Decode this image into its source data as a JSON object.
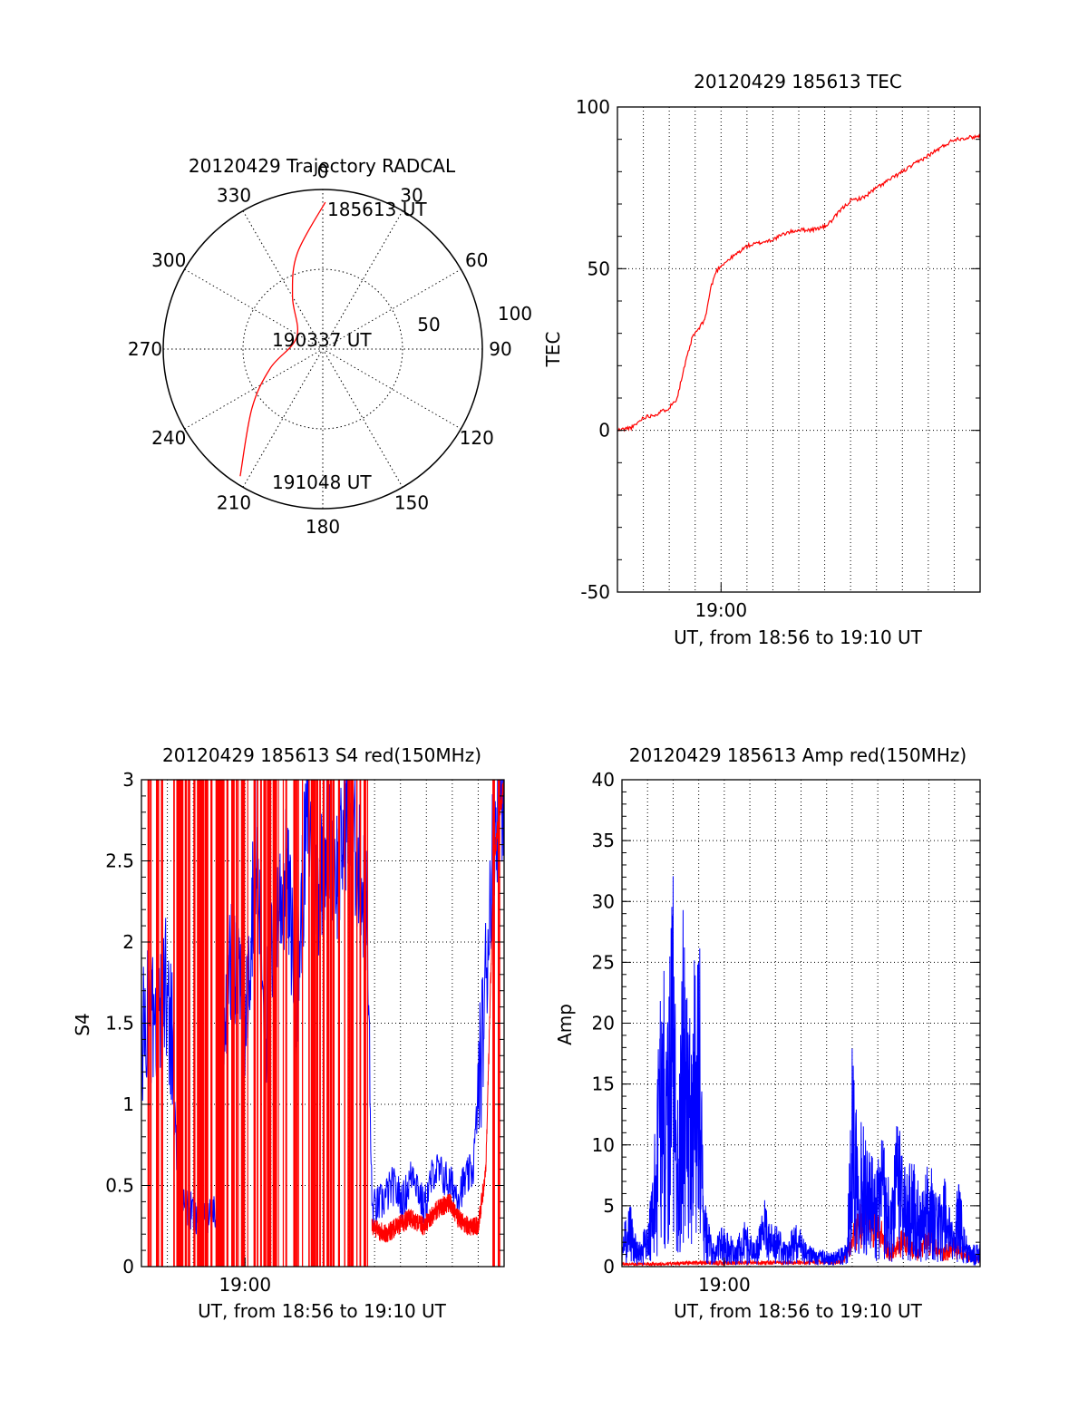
{
  "chart_data": [
    {
      "id": "polar",
      "type": "polar-trajectory",
      "title": "20120429 Trajectory RADCAL",
      "azimuth_labels": [
        "0",
        "30",
        "60",
        "90",
        "120",
        "150",
        "180",
        "210",
        "240",
        "270",
        "300",
        "330"
      ],
      "radial_labels": [
        "50",
        "100"
      ],
      "rlim": [
        0,
        100
      ],
      "start_label": "185613 UT",
      "mid_label": "190337 UT",
      "end_label": "191048 UT",
      "trajectory_color": "#ff0000",
      "trajectory": [
        {
          "az": 1,
          "zen": 92
        },
        {
          "az": 345,
          "zen": 62
        },
        {
          "az": 330,
          "zen": 38
        },
        {
          "az": 295,
          "zen": 18
        },
        {
          "az": 250,
          "zen": 35
        },
        {
          "az": 230,
          "zen": 58
        },
        {
          "az": 213,
          "zen": 95
        }
      ]
    },
    {
      "id": "tec",
      "type": "line",
      "title": "20120429 185613 TEC",
      "xlabel": "UT, from 18:56 to 19:10 UT",
      "ylabel": "TEC",
      "xlim": [
        0,
        14
      ],
      "ylim": [
        -50,
        100
      ],
      "x_unit": "minutes after 18:56",
      "xtick_labels": [
        {
          "x": 4,
          "label": "19:00"
        }
      ],
      "yticks": [
        "-50",
        "0",
        "50",
        "100"
      ],
      "series": [
        {
          "color": "#ff0000",
          "points": [
            [
              0,
              0
            ],
            [
              0.6,
              1
            ],
            [
              1,
              4
            ],
            [
              1.5,
              5
            ],
            [
              2,
              7
            ],
            [
              2.3,
              10
            ],
            [
              2.6,
              20
            ],
            [
              2.9,
              29
            ],
            [
              3.2,
              32
            ],
            [
              3.4,
              35
            ],
            [
              3.6,
              44
            ],
            [
              3.8,
              49
            ],
            [
              4,
              51
            ],
            [
              4.5,
              54
            ],
            [
              5,
              57
            ],
            [
              5.5,
              58
            ],
            [
              6,
              59
            ],
            [
              6.5,
              61
            ],
            [
              7,
              62
            ],
            [
              7.5,
              62
            ],
            [
              8,
              63
            ],
            [
              8.3,
              65
            ],
            [
              8.6,
              68
            ],
            [
              9,
              71
            ],
            [
              9.5,
              72
            ],
            [
              10,
              75
            ],
            [
              11,
              80
            ],
            [
              12,
              85
            ],
            [
              13,
              90
            ],
            [
              14,
              91
            ]
          ]
        }
      ]
    },
    {
      "id": "s4",
      "type": "line",
      "title": "20120429 185613 S4 red(150MHz)",
      "xlabel": "UT, from 18:56 to 19:10 UT",
      "ylabel": "S4",
      "xlim": [
        0,
        14
      ],
      "ylim": [
        0,
        3
      ],
      "x_unit": "minutes after 18:56",
      "xtick_labels": [
        {
          "x": 4,
          "label": "19:00"
        }
      ],
      "yticks": [
        "0",
        "0.5",
        "1",
        "1.5",
        "2",
        "2.5",
        "3"
      ],
      "series": [
        {
          "color": "#0000ff",
          "points": [
            [
              0,
              1.4
            ],
            [
              0.3,
              1.6
            ],
            [
              0.6,
              1.3
            ],
            [
              0.9,
              1.8
            ],
            [
              1.2,
              1.4
            ],
            [
              1.4,
              0.5
            ],
            [
              1.8,
              0.35
            ],
            [
              2.4,
              0.3
            ],
            [
              3,
              0.35
            ],
            [
              3.2,
              1.7
            ],
            [
              3.6,
              1.9
            ],
            [
              4,
              1.4
            ],
            [
              4.4,
              2.6
            ],
            [
              4.8,
              1.5
            ],
            [
              5.2,
              2.2
            ],
            [
              5.6,
              2.4
            ],
            [
              6,
              1.7
            ],
            [
              6.4,
              2.8
            ],
            [
              6.8,
              2.3
            ],
            [
              7.2,
              2.7
            ],
            [
              7.6,
              2.4
            ],
            [
              8,
              2.9
            ],
            [
              8.3,
              2.5
            ],
            [
              8.7,
              2.2
            ],
            [
              8.9,
              0.35
            ],
            [
              9.3,
              0.4
            ],
            [
              9.7,
              0.5
            ],
            [
              10.1,
              0.4
            ],
            [
              10.5,
              0.6
            ],
            [
              10.9,
              0.35
            ],
            [
              11.3,
              0.6
            ],
            [
              11.7,
              0.55
            ],
            [
              12.2,
              0.45
            ],
            [
              12.8,
              0.6
            ],
            [
              13.2,
              1.5
            ],
            [
              13.6,
              2.7
            ],
            [
              14,
              3
            ]
          ]
        },
        {
          "color": "#ff0000",
          "points": [
            [
              8.9,
              0.25
            ],
            [
              9.4,
              0.2
            ],
            [
              9.9,
              0.25
            ],
            [
              10.4,
              0.3
            ],
            [
              10.9,
              0.25
            ],
            [
              11.4,
              0.35
            ],
            [
              11.9,
              0.4
            ],
            [
              12.2,
              0.3
            ],
            [
              12.6,
              0.25
            ],
            [
              13,
              0.25
            ],
            [
              13.3,
              0.6
            ],
            [
              13.6,
              2.5
            ],
            [
              14,
              3
            ]
          ]
        }
      ]
    },
    {
      "id": "amp",
      "type": "line",
      "title": "20120429 185613 Amp red(150MHz)",
      "xlabel": "UT, from 18:56 to 19:10 UT",
      "ylabel": "Amp",
      "xlim": [
        0,
        14
      ],
      "ylim": [
        0,
        40
      ],
      "x_unit": "minutes after 18:56",
      "xtick_labels": [
        {
          "x": 4,
          "label": "19:00"
        }
      ],
      "yticks": [
        "0",
        "5",
        "10",
        "15",
        "20",
        "25",
        "30",
        "35",
        "40"
      ],
      "series": [
        {
          "color": "#ff0000",
          "points": [
            [
              0,
              0.2
            ],
            [
              1,
              0.2
            ],
            [
              3,
              0.3
            ],
            [
              5,
              0.3
            ],
            [
              7,
              0.3
            ],
            [
              8.6,
              0.4
            ],
            [
              9,
              2
            ],
            [
              9.5,
              4
            ],
            [
              10,
              3
            ],
            [
              10.5,
              1
            ],
            [
              11,
              2
            ],
            [
              11.5,
              1
            ],
            [
              12,
              2
            ],
            [
              12.5,
              1
            ],
            [
              13,
              1.5
            ],
            [
              13.5,
              0.8
            ],
            [
              14,
              0.5
            ]
          ]
        },
        {
          "color": "#0000ff",
          "points": [
            [
              0,
              1.5
            ],
            [
              0.3,
              3
            ],
            [
              0.6,
              1
            ],
            [
              1,
              2
            ],
            [
              1.2,
              4
            ],
            [
              1.4,
              9
            ],
            [
              1.6,
              14
            ],
            [
              1.8,
              11
            ],
            [
              2,
              18
            ],
            [
              2.2,
              7
            ],
            [
              2.4,
              16
            ],
            [
              2.6,
              10
            ],
            [
              2.8,
              13
            ],
            [
              3,
              17
            ],
            [
              3.2,
              3
            ],
            [
              3.6,
              1
            ],
            [
              4,
              2
            ],
            [
              4.4,
              1
            ],
            [
              4.8,
              2
            ],
            [
              5.2,
              1
            ],
            [
              5.6,
              3
            ],
            [
              6,
              2
            ],
            [
              6.4,
              1
            ],
            [
              6.8,
              2
            ],
            [
              7.2,
              1
            ],
            [
              7.6,
              0.8
            ],
            [
              8.2,
              0.6
            ],
            [
              8.8,
              1
            ],
            [
              9,
              10
            ],
            [
              9.3,
              7
            ],
            [
              9.6,
              6
            ],
            [
              9.9,
              4
            ],
            [
              10.2,
              6
            ],
            [
              10.5,
              3
            ],
            [
              10.8,
              7
            ],
            [
              11.1,
              4
            ],
            [
              11.4,
              5
            ],
            [
              11.7,
              3
            ],
            [
              12,
              5
            ],
            [
              12.3,
              3
            ],
            [
              12.6,
              4
            ],
            [
              12.9,
              2
            ],
            [
              13.2,
              4
            ],
            [
              13.5,
              1
            ],
            [
              14,
              1
            ]
          ]
        }
      ]
    }
  ]
}
